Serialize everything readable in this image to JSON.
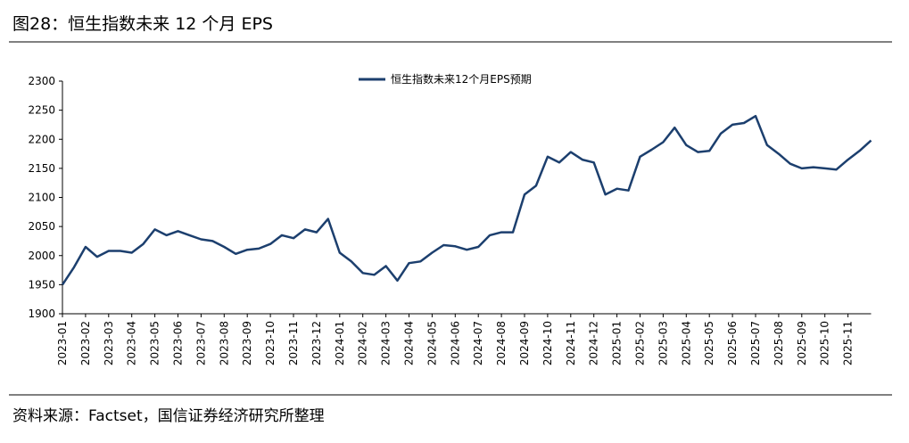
{
  "chart_data": {
    "type": "line",
    "title": "图28：恒生指数未来 12 个月 EPS",
    "source": "资料来源：Factset，国信证券经济研究所整理",
    "categories": [
      "2023-01",
      null,
      "2023-02",
      null,
      "2023-03",
      null,
      "2023-04",
      null,
      "2023-05",
      null,
      "2023-06",
      null,
      "2023-07",
      null,
      "2023-08",
      null,
      "2023-09",
      null,
      "2023-10",
      null,
      "2023-11",
      null,
      "2023-12",
      null,
      "2024-01",
      null,
      "2024-02",
      null,
      "2024-03",
      null,
      "2024-04",
      null,
      "2024-05",
      null,
      "2024-06",
      null,
      "2024-07",
      null,
      "2024-08",
      null,
      "2024-09",
      null,
      "2024-10",
      null,
      "2024-11",
      null,
      "2024-12",
      null,
      "2025-01",
      null,
      "2025-02",
      null,
      "2025-03",
      null,
      "2025-04",
      null,
      "2025-05",
      null,
      "2025-06",
      null,
      "2025-07",
      null,
      "2025-08",
      null,
      "2025-09",
      null,
      "2025-10",
      null,
      "2025-11",
      null,
      null
    ],
    "series": [
      {
        "name": "恒生指数未来12个月EPS预期",
        "color": "#1c3f6e",
        "values": [
          1950,
          1980,
          2015,
          1998,
          2008,
          2008,
          2005,
          2020,
          2045,
          2035,
          2042,
          2035,
          2028,
          2025,
          2015,
          2003,
          2010,
          2012,
          2020,
          2035,
          2030,
          2045,
          2040,
          2063,
          2005,
          1990,
          1970,
          1967,
          1982,
          1957,
          1987,
          1990,
          2005,
          2018,
          2016,
          2010,
          2015,
          2035,
          2040,
          2040,
          2105,
          2120,
          2170,
          2160,
          2178,
          2165,
          2160,
          2105,
          2115,
          2112,
          2170,
          2182,
          2195,
          2220,
          2190,
          2178,
          2180,
          2210,
          2225,
          2228,
          2240,
          2190,
          2175,
          2158,
          2150,
          2152,
          2150,
          2148,
          2165,
          2180,
          2198
        ]
      }
    ],
    "ylim": [
      1900,
      2300
    ],
    "yticks": [
      1900,
      1950,
      2000,
      2050,
      2100,
      2150,
      2200,
      2250,
      2300
    ],
    "legend": "top"
  }
}
